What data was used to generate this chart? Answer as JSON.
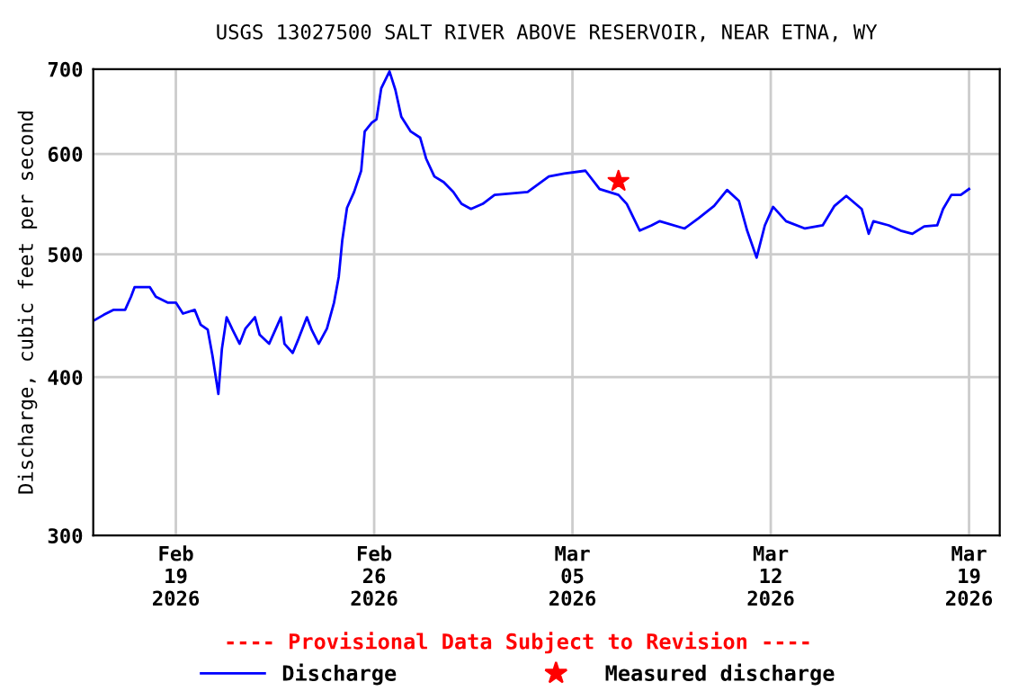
{
  "chart_data": {
    "type": "line",
    "title": "USGS 13027500 SALT RIVER ABOVE RESERVOIR, NEAR ETNA, WY",
    "ylabel": "Discharge, cubic feet per second",
    "log": "y",
    "grid": true,
    "legend": "bottom",
    "xlim": [
      "2026-02-16T02:00",
      "2026-03-20T02:00"
    ],
    "xticks": [
      {
        "value": "2026-02-19",
        "label": "Feb\n19\n2026"
      },
      {
        "value": "2026-02-26",
        "label": "Feb\n26\n2026"
      },
      {
        "value": "2026-03-05",
        "label": "Mar\n05\n2026"
      },
      {
        "value": "2026-03-12",
        "label": "Mar\n12\n2026"
      },
      {
        "value": "2026-03-19",
        "label": "Mar\n19\n2026"
      }
    ],
    "ylim": [
      300,
      700
    ],
    "yticks": [
      300,
      400,
      500,
      600,
      700
    ],
    "annotations": [
      "---- Provisional Data Subject to Revision ----"
    ],
    "series": [
      {
        "name": "Discharge",
        "color": "#0000ff",
        "marker": "none",
        "line_style": "solid",
        "x": [
          "2026-02-16T02:00",
          "2026-02-16T11:00",
          "2026-02-16T19:00",
          "2026-02-17T05:00",
          "2026-02-17T10:00",
          "2026-02-17T13:00",
          "2026-02-18T02:00",
          "2026-02-18T07:00",
          "2026-02-18T17:00",
          "2026-02-19T00:00",
          "2026-02-19T06:00",
          "2026-02-19T16:00",
          "2026-02-19T21:00",
          "2026-02-20T03:00",
          "2026-02-20T07:00",
          "2026-02-20T12:00",
          "2026-02-20T15:00",
          "2026-02-20T19:00",
          "2026-02-21T00:00",
          "2026-02-21T06:00",
          "2026-02-21T11:00",
          "2026-02-21T19:00",
          "2026-02-21T23:00",
          "2026-02-22T07:00",
          "2026-02-22T17:00",
          "2026-02-22T20:00",
          "2026-02-23T03:00",
          "2026-02-23T08:00",
          "2026-02-23T15:00",
          "2026-02-23T19:00",
          "2026-02-24T01:00",
          "2026-02-24T08:00",
          "2026-02-24T14:00",
          "2026-02-24T18:00",
          "2026-02-24T21:00",
          "2026-02-25T01:00",
          "2026-02-25T07:00",
          "2026-02-25T13:00",
          "2026-02-25T16:00",
          "2026-02-25T22:00",
          "2026-02-26T02:00",
          "2026-02-26T06:00",
          "2026-02-26T13:00",
          "2026-02-26T18:00",
          "2026-02-26T23:00",
          "2026-02-27T07:00",
          "2026-02-27T15:00",
          "2026-02-27T20:00",
          "2026-02-28T03:00",
          "2026-02-28T11:00",
          "2026-02-28T19:00",
          "2026-03-01T02:00",
          "2026-03-01T10:00",
          "2026-03-01T20:00",
          "2026-03-02T06:00",
          "2026-03-03T10:00",
          "2026-03-04T04:00",
          "2026-03-04T17:00",
          "2026-03-05T11:00",
          "2026-03-05T23:00",
          "2026-03-06T15:00",
          "2026-03-06T22:00",
          "2026-03-07T09:00",
          "2026-03-07T19:00",
          "2026-03-08T02:00",
          "2026-03-08T23:00",
          "2026-03-09T11:00",
          "2026-03-10T00:00",
          "2026-03-10T11:00",
          "2026-03-10T21:00",
          "2026-03-11T04:00",
          "2026-03-11T12:00",
          "2026-03-11T19:00",
          "2026-03-12T02:00",
          "2026-03-12T13:00",
          "2026-03-13T05:00",
          "2026-03-13T20:00",
          "2026-03-14T06:00",
          "2026-03-14T16:00",
          "2026-03-15T05:00",
          "2026-03-15T11:00",
          "2026-03-15T15:00",
          "2026-03-16T04:00",
          "2026-03-16T14:00",
          "2026-03-17T00:00",
          "2026-03-17T10:00",
          "2026-03-17T21:00",
          "2026-03-18T02:00",
          "2026-03-18T09:00",
          "2026-03-18T17:00",
          "2026-03-19T00:00"
        ],
        "values": [
          443,
          448,
          452,
          452,
          463,
          471,
          471,
          463,
          458,
          458,
          449,
          452,
          440,
          436,
          416,
          388,
          421,
          446,
          436,
          425,
          437,
          446,
          432,
          425,
          446,
          425,
          418,
          429,
          446,
          436,
          425,
          437,
          458,
          480,
          513,
          544,
          560,
          582,
          625,
          635,
          639,
          676,
          697,
          674,
          642,
          625,
          618,
          595,
          576,
          570,
          560,
          548,
          543,
          548,
          557,
          560,
          576,
          579,
          582,
          563,
          557,
          548,
          522,
          527,
          531,
          524,
          534,
          546,
          562,
          551,
          522,
          497,
          527,
          545,
          531,
          524,
          527,
          546,
          556,
          543,
          519,
          531,
          527,
          522,
          519,
          526,
          527,
          543,
          557,
          557,
          563
        ]
      },
      {
        "name": "Measured discharge",
        "type": "scatter",
        "color": "#ff0000",
        "marker": "star",
        "x": [
          "2026-03-06T15:00"
        ],
        "values": [
          571
        ]
      }
    ]
  }
}
